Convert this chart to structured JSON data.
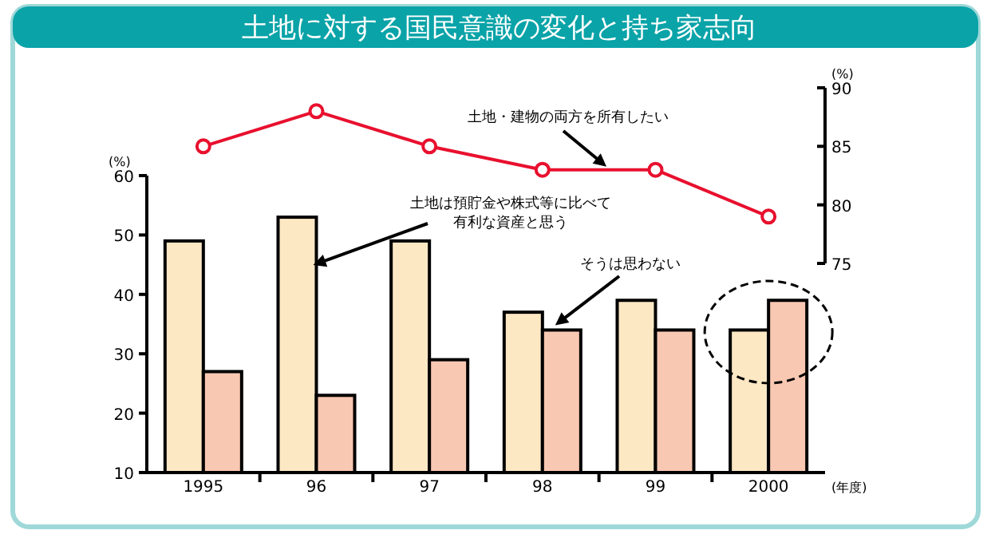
{
  "chart_data": [
    {
      "type": "line",
      "title": "土地に対する国民意識の変化と持ち家志向",
      "ylabel": "(%)",
      "categories": [
        "1995",
        "96",
        "97",
        "98",
        "99",
        "2000"
      ],
      "tick_labels": "y",
      "ylim": [
        75,
        90
      ],
      "yticks": [
        75,
        80,
        85,
        90
      ],
      "marker": "circle",
      "series": [
        {
          "name": "土地・建物の両方を所有したい",
          "color": "#e8102e",
          "values": [
            85,
            88,
            85,
            83,
            83,
            79
          ]
        }
      ]
    },
    {
      "type": "bar",
      "xlabel": "(年度)",
      "ylabel": "(%)",
      "categories": [
        "1995",
        "96",
        "97",
        "98",
        "99",
        "2000"
      ],
      "ylim": [
        10,
        60
      ],
      "yticks": [
        10,
        20,
        30,
        40,
        50,
        60
      ],
      "series": [
        {
          "name": "土地は預貯金や株式等に比べて有利な資産と思う",
          "color": "#fde8c4",
          "values": [
            49,
            53,
            49,
            37,
            39,
            34
          ]
        },
        {
          "name": "そうは思わない",
          "color": "#f9c8b2",
          "values": [
            27,
            23,
            29,
            34,
            34,
            39
          ]
        }
      ]
    }
  ]
}
